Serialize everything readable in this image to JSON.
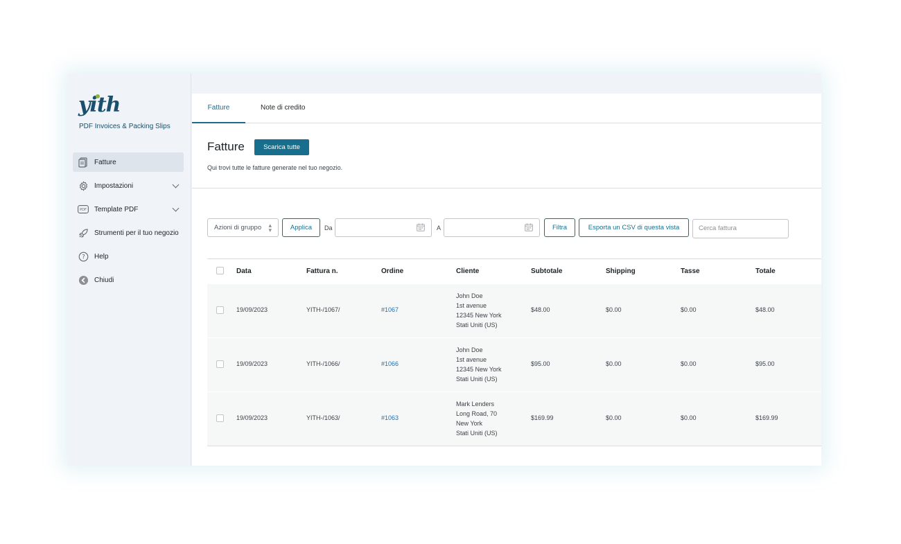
{
  "sidebar": {
    "logo_text": "yith",
    "product_name": "PDF Invoices & Packing Slips",
    "items": [
      {
        "label": "Fatture",
        "icon": "invoice-icon",
        "active": true
      },
      {
        "label": "Impostazioni",
        "icon": "gear-icon",
        "expandable": true
      },
      {
        "label": "Template PDF",
        "icon": "pdf-icon",
        "expandable": true,
        "icon_text": "PDF"
      },
      {
        "label": "Strumenti per il tuo negozio",
        "icon": "rocket-icon"
      },
      {
        "label": "Help",
        "icon": "help-icon",
        "icon_text": "?"
      },
      {
        "label": "Chiudi",
        "icon": "back-arrow-icon"
      }
    ]
  },
  "tabs": [
    {
      "label": "Fatture",
      "active": true
    },
    {
      "label": "Note di credito"
    }
  ],
  "page": {
    "title": "Fatture",
    "download_all_label": "Scarica tutte",
    "description": "Qui trovi tutte le fatture generate nel tuo negozio."
  },
  "filters": {
    "bulk_actions": "Azioni di gruppo",
    "apply_label": "Applica",
    "from_label": "Da",
    "from_value": "",
    "to_label": "A",
    "to_value": "",
    "filter_label": "Filtra",
    "export_csv_label": "Esporta un CSV di questa vista",
    "search_placeholder": "Cerca fattura"
  },
  "table": {
    "columns": [
      "Data",
      "Fattura n.",
      "Ordine",
      "Cliente",
      "Subtotale",
      "Shipping",
      "Tasse",
      "Totale"
    ],
    "rows": [
      {
        "date": "19/09/2023",
        "invoice": "YITH-/1067/",
        "order": "#1067",
        "customer": [
          "John Doe",
          "1st avenue",
          "12345 New York",
          "Stati Uniti (US)"
        ],
        "subtotal": "$48.00",
        "shipping": "$0.00",
        "taxes": "$0.00",
        "total": "$48.00"
      },
      {
        "date": "19/09/2023",
        "invoice": "YITH-/1066/",
        "order": "#1066",
        "customer": [
          "John Doe",
          "1st avenue",
          "12345 New York",
          "Stati Uniti (US)"
        ],
        "subtotal": "$95.00",
        "shipping": "$0.00",
        "taxes": "$0.00",
        "total": "$95.00"
      },
      {
        "date": "19/09/2023",
        "invoice": "YITH-/1063/",
        "order": "#1063",
        "customer": [
          "Mark Lenders",
          "Long Road, 70",
          "New York",
          "Stati Uniti (US)"
        ],
        "subtotal": "$169.99",
        "shipping": "$0.00",
        "taxes": "$0.00",
        "total": "$169.99"
      }
    ]
  },
  "colors": {
    "accent": "#186f8d",
    "link": "#2271b1",
    "logo": "#1b4f6b",
    "logo_dot": "#8db33f"
  }
}
